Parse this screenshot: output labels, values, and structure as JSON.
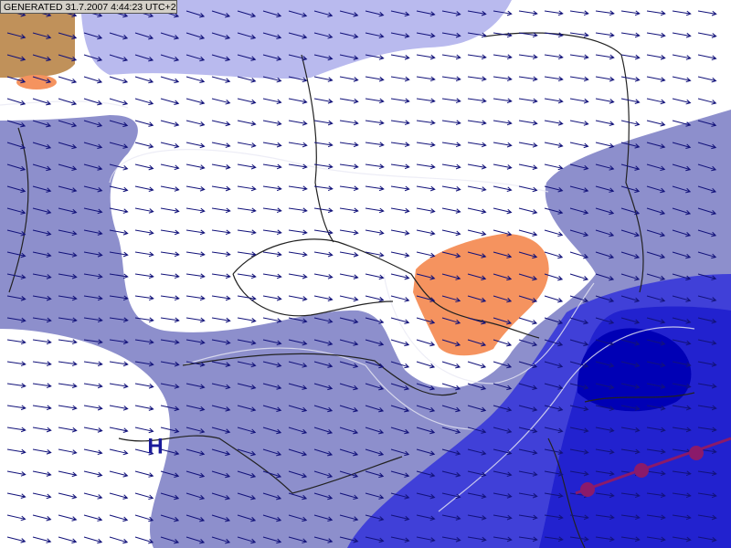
{
  "header": {
    "generated": "GENERATED 31.7.2007 4:44:23 UTC+2"
  },
  "pressure_center": {
    "label": "H"
  }
}
